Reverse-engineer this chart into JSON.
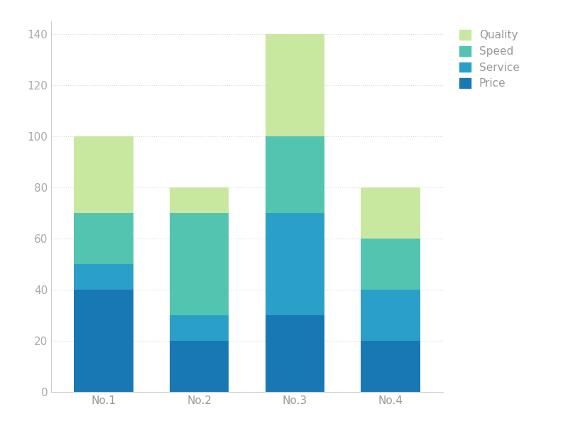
{
  "categories": [
    "No.1",
    "No.2",
    "No.3",
    "No.4"
  ],
  "series": {
    "Price": [
      40,
      20,
      30,
      20
    ],
    "Service": [
      10,
      10,
      40,
      20
    ],
    "Speed": [
      20,
      40,
      30,
      20
    ],
    "Quality": [
      30,
      10,
      40,
      20
    ]
  },
  "colors": {
    "Price": "#1878b4",
    "Service": "#2aa0c8",
    "Speed": "#52c4b0",
    "Quality": "#c8e8a0"
  },
  "legend_order": [
    "Quality",
    "Speed",
    "Service",
    "Price"
  ],
  "ylim": [
    0,
    145
  ],
  "yticks": [
    0,
    20,
    40,
    60,
    80,
    100,
    120,
    140
  ],
  "bar_width": 0.62,
  "background_color": "#ffffff",
  "grid_color": "#d8d8d8",
  "spine_color": "#cccccc",
  "tick_color": "#aaaaaa",
  "label_color": "#999999",
  "figsize": [
    8.0,
    6.0
  ],
  "dpi": 100
}
